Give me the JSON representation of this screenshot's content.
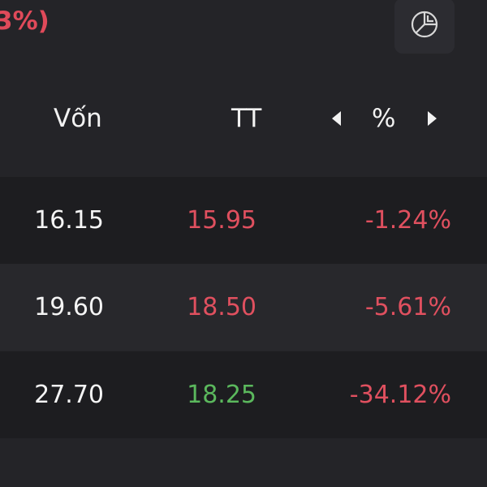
{
  "summary": {
    "partial_text": "3%)",
    "color": "#e04a5a"
  },
  "chart_button": {
    "icon": "pie-chart-icon"
  },
  "table": {
    "headers": {
      "von": "Vốn",
      "tt": "TT",
      "pct": "%"
    },
    "rows": [
      {
        "von": "16.15",
        "tt": "15.95",
        "pct": "-1.24%",
        "tt_color": "red"
      },
      {
        "von": "19.60",
        "tt": "18.50",
        "pct": "-5.61%",
        "tt_color": "red"
      },
      {
        "von": "27.70",
        "tt": "18.25",
        "pct": "-34.12%",
        "tt_color": "green"
      }
    ]
  },
  "colors": {
    "background": "#242428",
    "negative": "#e0505f",
    "positive": "#5bb85d",
    "text": "#f2f2f2"
  }
}
